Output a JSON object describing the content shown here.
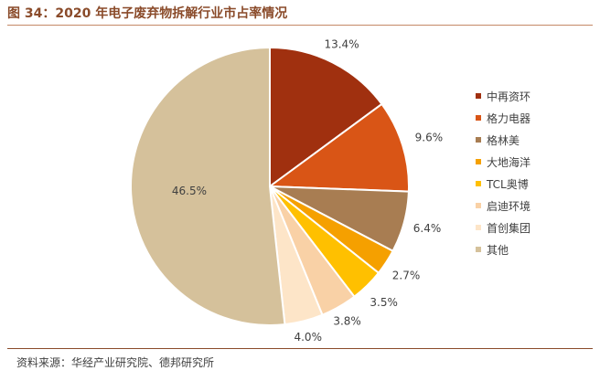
{
  "title": "图 34：2020 年电子废弃物拆解行业市占率情况",
  "source": "资料来源：华经产业研究院、德邦研究所",
  "chart_data": {
    "type": "pie",
    "start": "12 o'clock",
    "direction": "clockwise",
    "legend_position": "right",
    "slices": [
      {
        "name": "中再资环",
        "value": 13.4,
        "label": "13.4%",
        "color": "#a0300f"
      },
      {
        "name": "格力电器",
        "value": 9.6,
        "label": "9.6%",
        "color": "#d95516"
      },
      {
        "name": "格林美",
        "value": 6.4,
        "label": "6.4%",
        "color": "#a87d52"
      },
      {
        "name": "大地海洋",
        "value": 2.7,
        "label": "2.7%",
        "color": "#f5a000"
      },
      {
        "name": "TCL奥博",
        "value": 3.5,
        "label": "3.5%",
        "color": "#ffc000"
      },
      {
        "name": "启迪环境",
        "value": 3.8,
        "label": "3.8%",
        "color": "#f9d1a6"
      },
      {
        "name": "首创集团",
        "value": 4.0,
        "label": "4.0%",
        "color": "#fde5c8"
      },
      {
        "name": "其他",
        "value": 46.5,
        "label": "46.5%",
        "color": "#d5c19b"
      }
    ]
  }
}
